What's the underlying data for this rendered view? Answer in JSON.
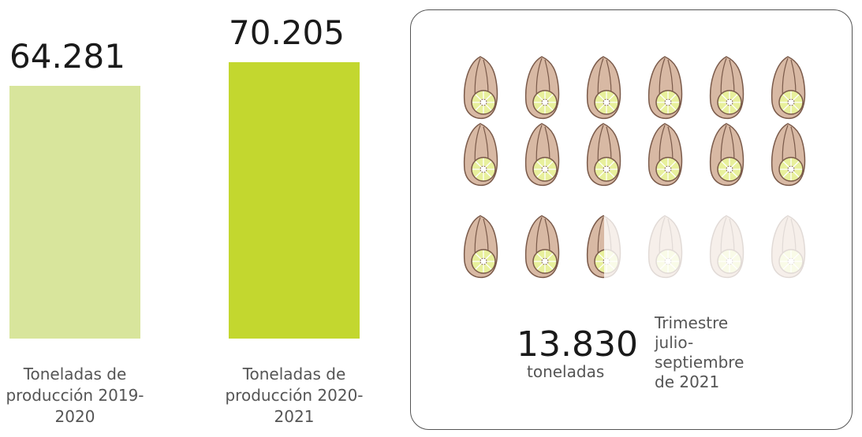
{
  "chart_data": [
    {
      "type": "bar",
      "categories": [
        "Toneladas de producción 2019-2020",
        "Toneladas de producción 2020-2021"
      ],
      "values": [
        64281,
        70205
      ],
      "value_labels": [
        "64.281",
        "70.205"
      ],
      "colors": [
        "#d8e59c",
        "#c3d72f"
      ]
    },
    {
      "type": "pictogram",
      "value": 13830,
      "value_label": "13.830",
      "unit": "toneladas",
      "note": "Trimestre julio-septiembre de 2021",
      "icons": 18,
      "filled": 14.5
    }
  ]
}
